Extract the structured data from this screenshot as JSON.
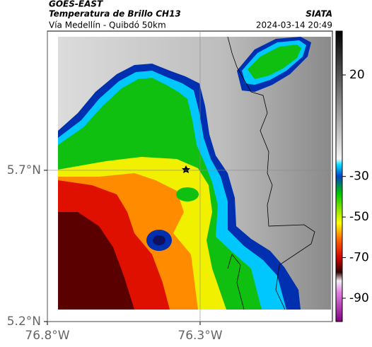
{
  "header": {
    "source": "GOES-EAST",
    "title": "Temperatura de Brillo CH13",
    "agency": "SIATA",
    "subtitle": "Vía Medellín - Quibdó 50km",
    "timestamp": "2024-03-14 20:49"
  },
  "map": {
    "xlim": [
      -76.8,
      -75.867
    ],
    "ylim": [
      5.2,
      6.16
    ],
    "xticks": [
      {
        "value": -76.8,
        "label": "76.8°W"
      },
      {
        "value": -76.3,
        "label": "76.3°W"
      }
    ],
    "yticks": [
      {
        "value": 5.2,
        "label": "5.2°N"
      },
      {
        "value": 5.7,
        "label": "5.7°N"
      }
    ]
  },
  "colorbar": {
    "lim": [
      -101.5,
      41.6
    ],
    "ticks": [
      20,
      -30,
      -50,
      -70,
      -90
    ]
  }
}
